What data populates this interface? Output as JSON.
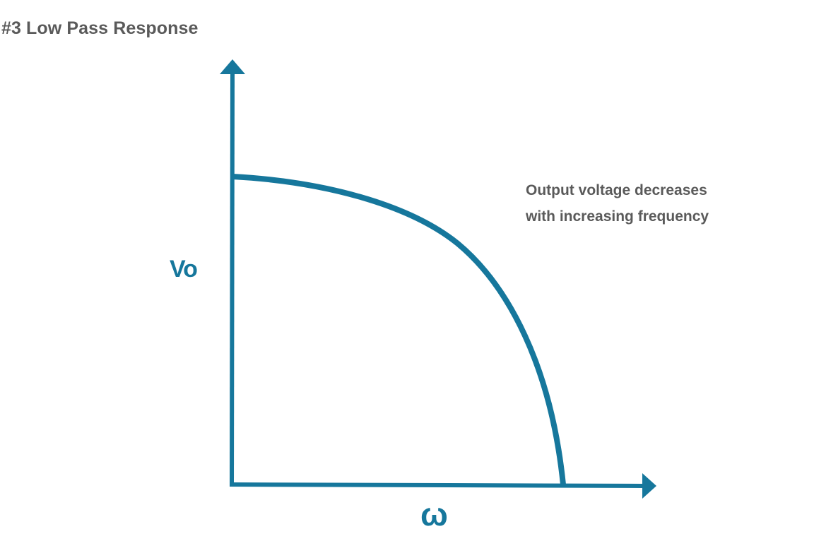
{
  "title": "#3 Low Pass Response",
  "annotation": {
    "line1": "Output voltage decreases",
    "line2": "with increasing frequency"
  },
  "axes": {
    "y_label": "Vo",
    "x_label": "ω"
  },
  "colors": {
    "curve": "#16779c",
    "axis": "#16779c",
    "text": "#5a5a5a"
  }
}
